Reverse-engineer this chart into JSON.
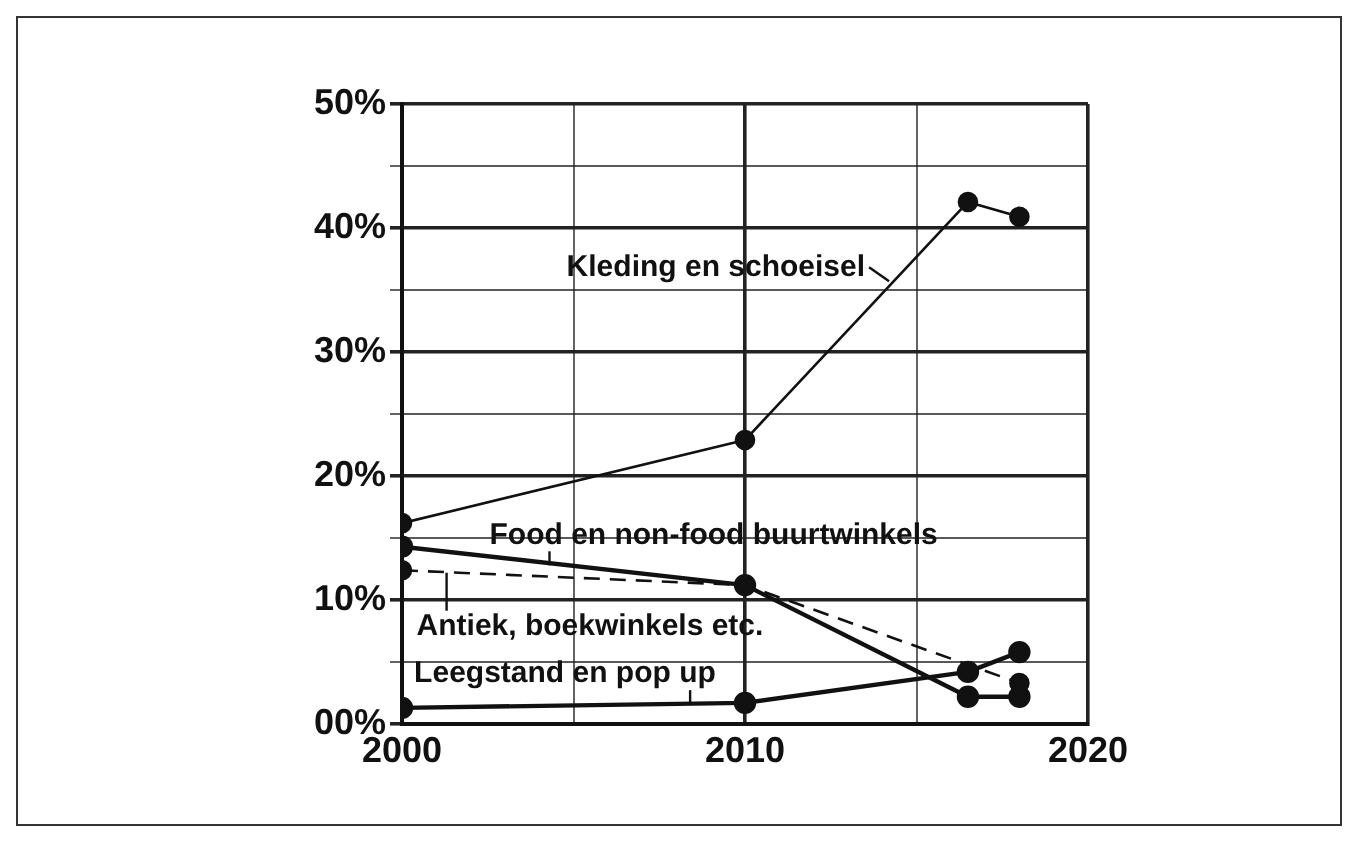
{
  "chart_data": {
    "type": "line",
    "x": [
      2000,
      2010,
      2016.5,
      2018
    ],
    "series": [
      {
        "color": "#111111",
        "values": [
          16.2,
          22.9,
          42.1,
          40.9
        ]
      },
      {
        "color": "#111111",
        "values": [
          14.3,
          11.2,
          2.2,
          2.2
        ]
      },
      {
        "color": "#111111",
        "line_style": "dashed",
        "x": [
          2000,
          2010,
          2018
        ],
        "values": [
          12.4,
          11.2,
          3.3
        ]
      },
      {
        "color": "#111111",
        "values": [
          1.3,
          1.7,
          4.2,
          5.8
        ]
      }
    ],
    "xlim": [
      2000,
      2020
    ],
    "xticks": [
      2000,
      {
        "value": 2005,
        "label": null
      },
      2010,
      {
        "value": 2015,
        "label": null
      },
      2020
    ],
    "ylim": [
      0,
      50
    ],
    "yticks": [
      {
        "value": 0,
        "label": "00%"
      },
      {
        "value": 5,
        "label": null
      },
      {
        "value": 10,
        "label": "10%"
      },
      {
        "value": 15,
        "label": null
      },
      {
        "value": 20,
        "label": "20%"
      },
      {
        "value": 25,
        "label": null
      },
      {
        "value": 30,
        "label": "30%"
      },
      {
        "value": 35,
        "label": null
      },
      {
        "value": 40,
        "label": "40%"
      },
      {
        "value": 45,
        "label": null
      },
      {
        "value": 50,
        "label": "50%"
      }
    ],
    "grid": true,
    "marker": "circle",
    "annotations": [
      {
        "text": "Kleding en schoeisel",
        "x": 2014.2,
        "y": 35.7
      },
      {
        "text": "Food en non-food buurtwinkels",
        "x": 2004.3,
        "y": 12.8
      },
      {
        "text": "Antiek, boekwinkels etc.",
        "x": 2001.3,
        "y": 12.2
      },
      {
        "text": "Leegstand en pop up",
        "x": 2008.4,
        "y": 1.6
      }
    ]
  }
}
